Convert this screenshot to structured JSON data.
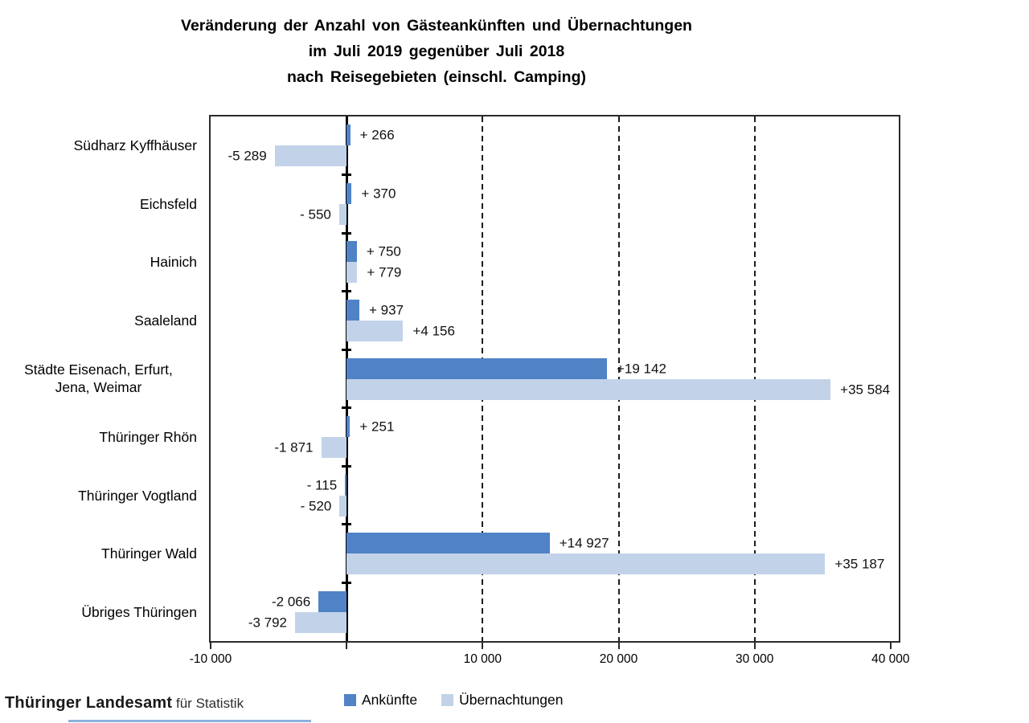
{
  "chart_data": {
    "type": "bar",
    "orientation": "horizontal",
    "title_lines": [
      "Veränderung der Anzahl von Gästeankünften und Übernachtungen",
      "im Juli 2019 gegenüber Juli 2018",
      "nach Reisegebieten (einschl. Camping)"
    ],
    "categories": [
      {
        "id": "suedharz-kyffhaeuser",
        "lines": [
          "Südharz Kyffhäuser"
        ]
      },
      {
        "id": "eichsfeld",
        "lines": [
          "Eichsfeld"
        ]
      },
      {
        "id": "hainich",
        "lines": [
          "Hainich"
        ]
      },
      {
        "id": "saaleland",
        "lines": [
          "Saaleland"
        ]
      },
      {
        "id": "staedte-eisenach-erfurt-jena-weimar",
        "lines": [
          "Städte Eisenach, Erfurt,",
          "Jena, Weimar"
        ]
      },
      {
        "id": "thueringer-rhoen",
        "lines": [
          "Thüringer Rhön"
        ]
      },
      {
        "id": "thueringer-vogtland",
        "lines": [
          "Thüringer Vogtland"
        ]
      },
      {
        "id": "thueringer-wald",
        "lines": [
          "Thüringer Wald"
        ]
      },
      {
        "id": "uebriges-thueringen",
        "lines": [
          "Übriges Thüringen"
        ]
      }
    ],
    "series": [
      {
        "name": "Ankünfte",
        "color": "#4f83c6",
        "values": [
          266,
          370,
          750,
          937,
          19142,
          251,
          -115,
          14927,
          -2066
        ],
        "labels": [
          "+ 266",
          "+ 370",
          "+ 750",
          "+ 937",
          "+19 142",
          "+ 251",
          "- 115",
          "+14 927",
          "-2 066"
        ]
      },
      {
        "name": "Übernachtungen",
        "color": "#c2d3e9",
        "values": [
          -5289,
          -550,
          779,
          4156,
          35584,
          -1871,
          -520,
          35187,
          -3792
        ],
        "labels": [
          "-5 289",
          "- 550",
          "+ 779",
          "+4 156",
          "+35 584",
          "-1 871",
          "- 520",
          "+35 187",
          "-3 792"
        ]
      }
    ],
    "x_axis": {
      "min": -10000,
      "max": 40600,
      "tick_values": [
        -10000,
        0,
        10000,
        20000,
        30000,
        40000
      ],
      "tick_labels": [
        "-10 000",
        "",
        "10 000",
        "20 000",
        "30 000",
        "40 000"
      ],
      "gridline_values": [
        10000,
        20000,
        30000
      ],
      "grid_style": "dashed"
    },
    "legend": {
      "position": "bottom",
      "entries": [
        "Ankünfte",
        "Übernachtungen"
      ]
    }
  },
  "footer": {
    "org_main": "Thüringer Landesamt",
    "org_rest": " für Statistik"
  },
  "colors": {
    "ankuenfte": "#4f83c6",
    "uebernachtungen": "#c2d3e9",
    "axis": "#000000",
    "border": "#2b2b2b",
    "footer_underline": "#8ab0dd"
  }
}
